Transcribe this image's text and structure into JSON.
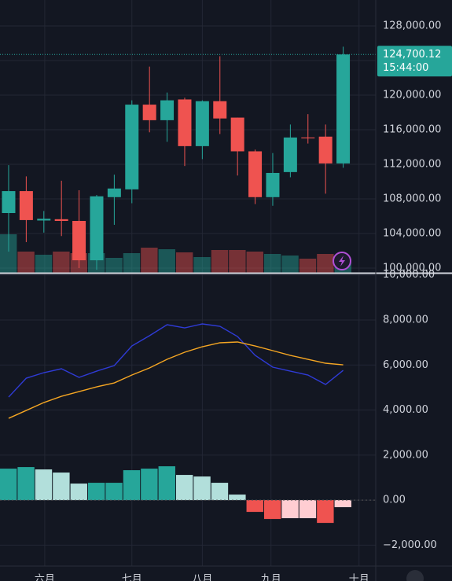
{
  "chart_data": [
    {
      "type": "candlestick",
      "open": [
        106360,
        108900,
        105500,
        105650,
        105450,
        100900,
        108200,
        109100,
        118900,
        117100,
        119500,
        114100,
        119300,
        117400,
        113500,
        108200,
        111100,
        115100,
        115200,
        112100
      ],
      "high": [
        111900,
        110600,
        106600,
        110100,
        109000,
        108450,
        110800,
        119400,
        123300,
        120300,
        119700,
        119400,
        124500,
        117400,
        113700,
        113300,
        116600,
        117800,
        116600,
        125600
      ],
      "low": [
        101900,
        103000,
        104100,
        103700,
        100000,
        99800,
        105000,
        107500,
        115700,
        114600,
        111800,
        112600,
        115500,
        110700,
        107400,
        107200,
        110500,
        114400,
        108600,
        111600
      ],
      "close": [
        108900,
        105550,
        105700,
        105450,
        100900,
        108300,
        109200,
        118900,
        117100,
        119400,
        114100,
        119300,
        117300,
        113500,
        108200,
        111000,
        115100,
        115000,
        112100,
        124700
      ],
      "volume": [
        50,
        28,
        24,
        28,
        26,
        26,
        20,
        26,
        33,
        31,
        27,
        21,
        30,
        30,
        28,
        25,
        23,
        19,
        25,
        18
      ],
      "up_color": "#26a69a",
      "down_color": "#ef5350",
      "ylim": [
        99450,
        131000
      ],
      "yticks": [
        {
          "value": 128000,
          "label": "128,000.00"
        },
        {
          "value": 124000,
          "label": "124,000.00"
        },
        {
          "value": 120000,
          "label": "120,000.00"
        },
        {
          "value": 116000,
          "label": "116,000.00"
        },
        {
          "value": 112000,
          "label": "112,000.00"
        },
        {
          "value": 108000,
          "label": "108,000.00"
        },
        {
          "value": 104000,
          "label": "104,000.00"
        },
        {
          "value": 100000,
          "label": "100,000.00"
        }
      ],
      "last_price": {
        "value": 124700.12,
        "label": "124,700.12"
      },
      "countdown": "15:44:00"
    },
    {
      "type": "macd",
      "macd": [
        4576,
        5415,
        5660,
        5834,
        5450,
        5729,
        5974,
        6847,
        7301,
        7790,
        7650,
        7825,
        7720,
        7266,
        6428,
        5904,
        5729,
        5555,
        5135,
        5764
      ],
      "signal": [
        3633,
        3982,
        4332,
        4611,
        4821,
        5031,
        5205,
        5555,
        5869,
        6253,
        6568,
        6812,
        6987,
        7022,
        6847,
        6638,
        6428,
        6253,
        6079,
        6009
      ],
      "histogram": [
        1397,
        1467,
        1362,
        1223,
        734,
        769,
        769,
        1328,
        1397,
        1502,
        1118,
        1048,
        769,
        245,
        -524,
        -838,
        -803,
        -803,
        -1013,
        -314
      ],
      "histogram_colors": [
        "#26a69a",
        "#26a69a",
        "#b2dfdb",
        "#b2dfdb",
        "#b2dfdb",
        "#26a69a",
        "#26a69a",
        "#26a69a",
        "#26a69a",
        "#26a69a",
        "#b2dfdb",
        "#b2dfdb",
        "#b2dfdb",
        "#b2dfdb",
        "#ef5350",
        "#ef5350",
        "#ffcdd2",
        "#ffcdd2",
        "#ef5350",
        "#ffcdd2"
      ],
      "macd_color": "#2f3bd6",
      "signal_color": "#f5a623",
      "ylim": [
        -2930,
        10060
      ],
      "yticks": [
        {
          "value": 10000,
          "label": "10,000.00"
        },
        {
          "value": 8000,
          "label": "8,000.00"
        },
        {
          "value": 6000,
          "label": "6,000.00"
        },
        {
          "value": 4000,
          "label": "4,000.00"
        },
        {
          "value": 2000,
          "label": "2,000.00"
        },
        {
          "value": 0,
          "label": "0.00"
        },
        {
          "value": -2000,
          "label": "−2,000.00"
        }
      ]
    }
  ],
  "x_axis": {
    "xlim": [
      -0.49,
      20.85
    ],
    "xticks": [
      {
        "value": 2.05,
        "label": "六月"
      },
      {
        "value": 7,
        "label": "七月"
      },
      {
        "value": 11,
        "label": "八月"
      },
      {
        "value": 14.9,
        "label": "九月"
      },
      {
        "value": 19.9,
        "label": "十月"
      }
    ]
  }
}
